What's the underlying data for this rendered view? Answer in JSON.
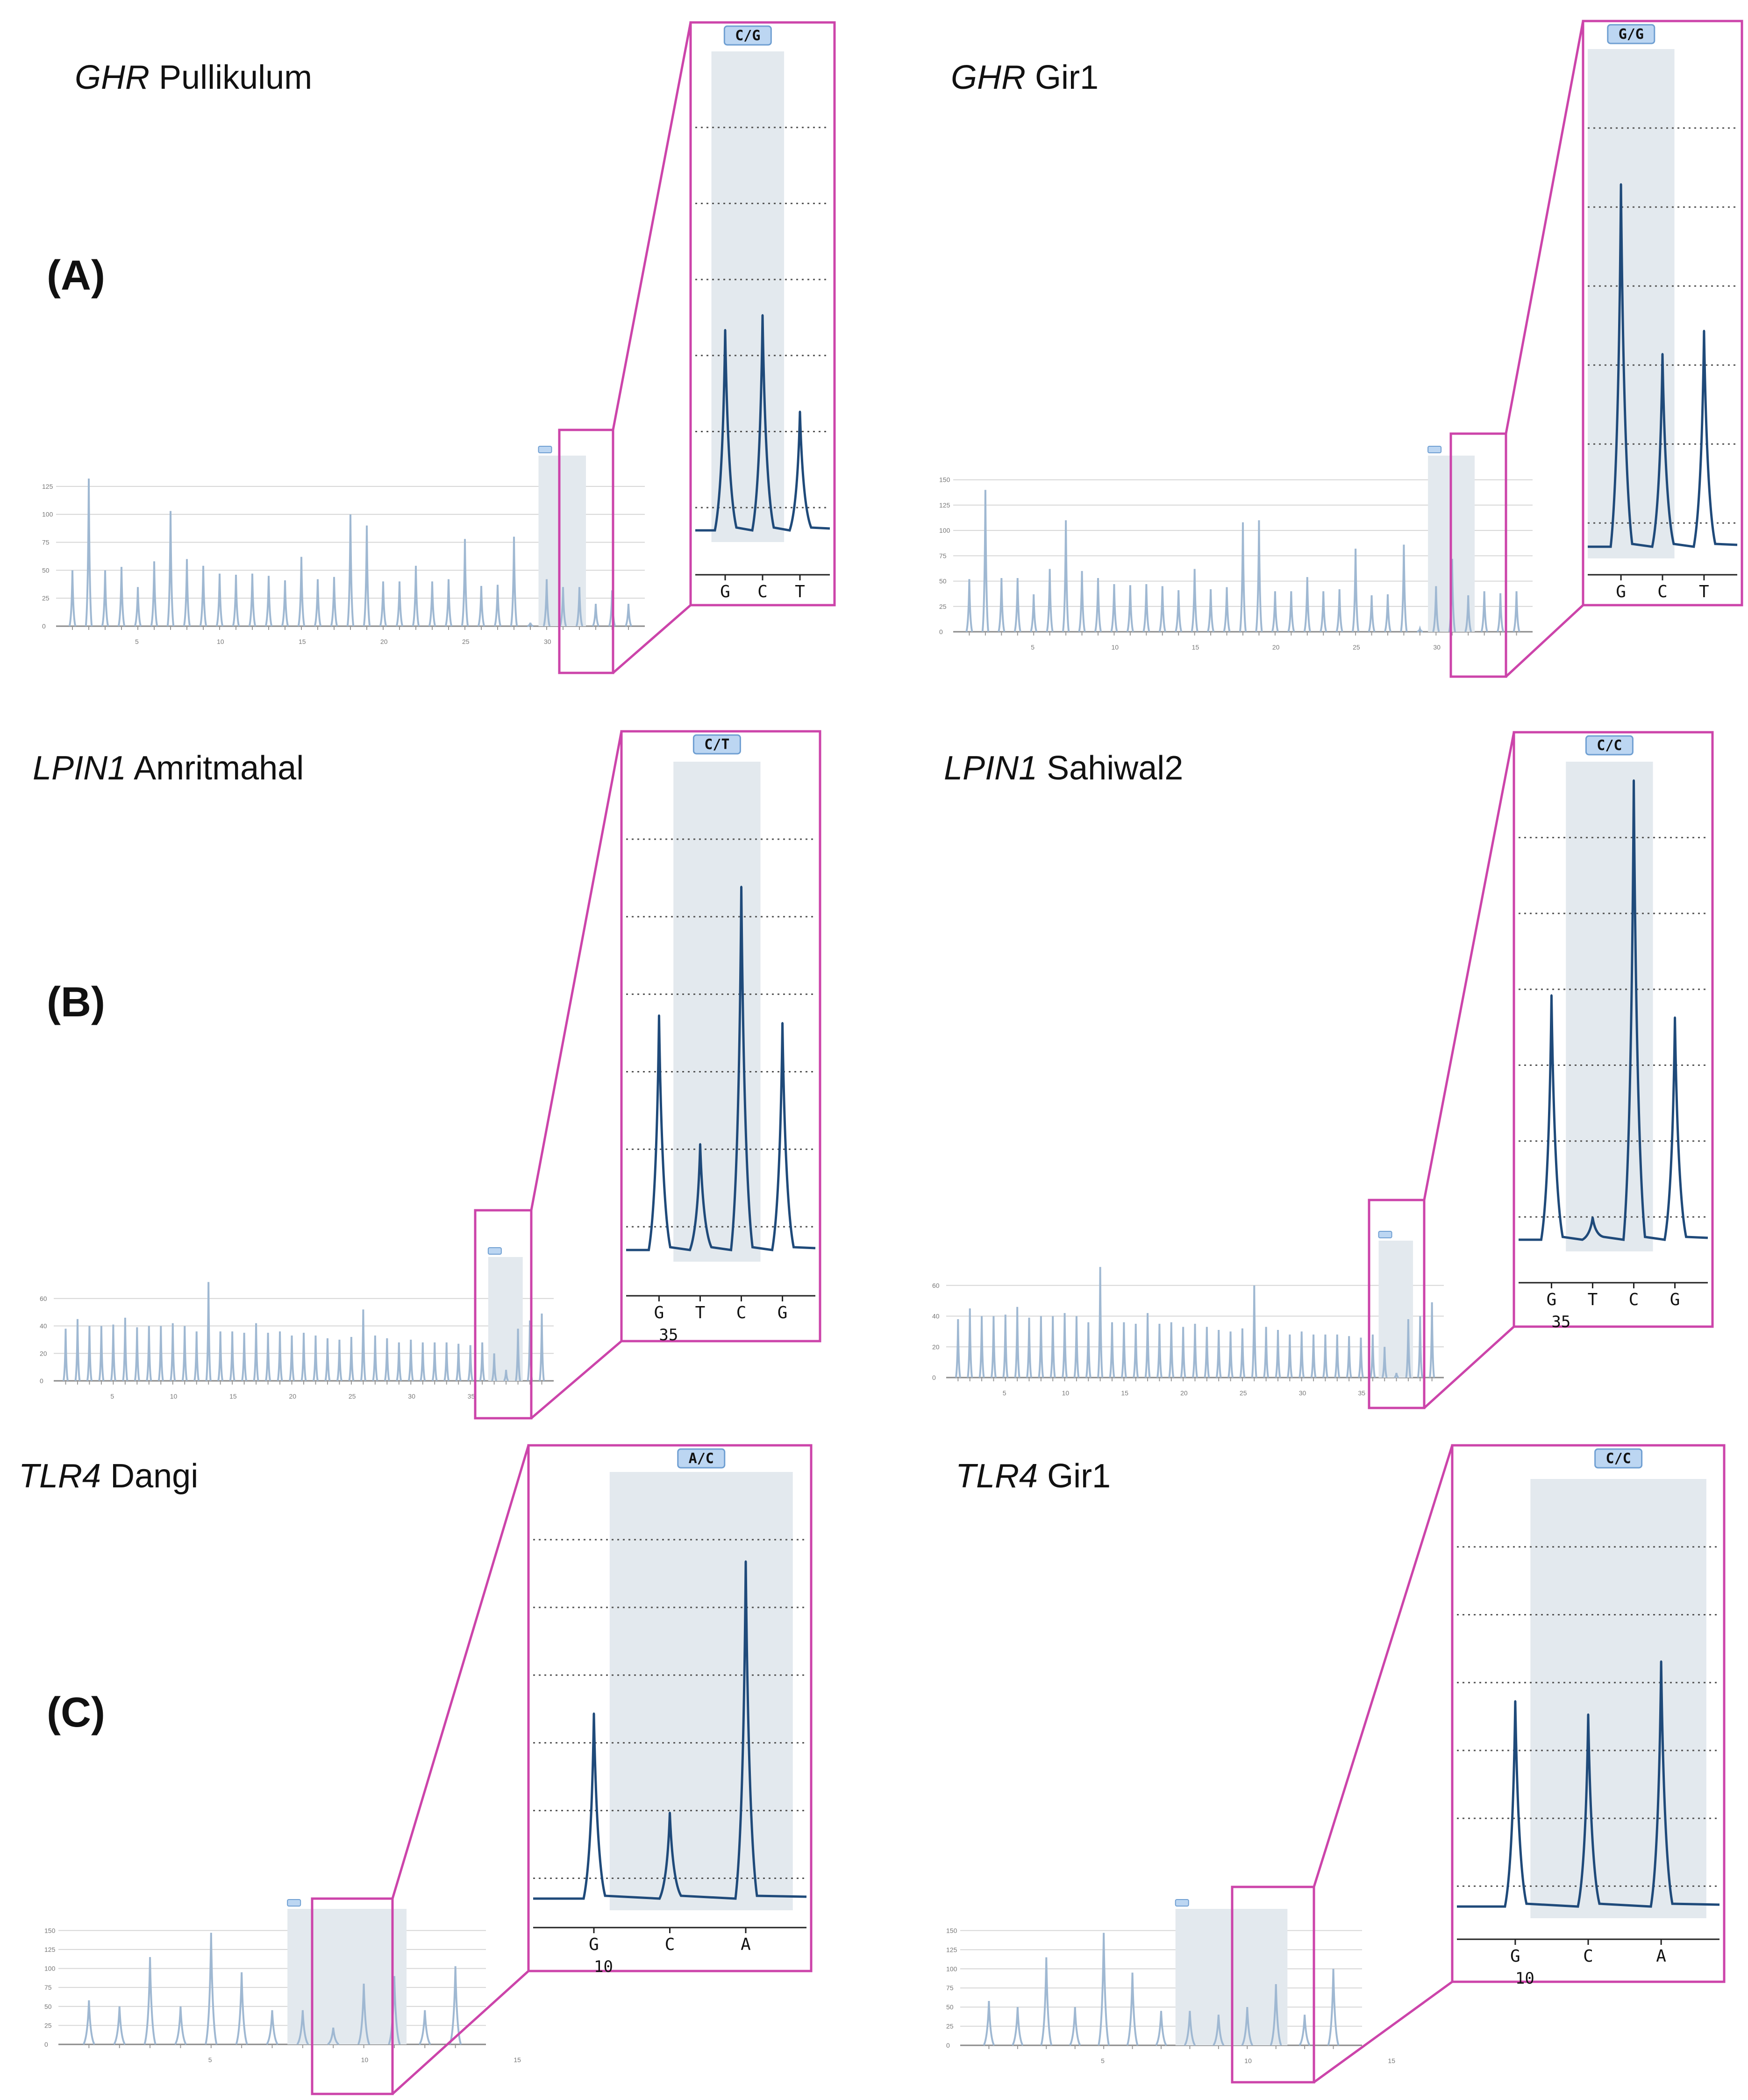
{
  "figure": {
    "panel_labels": [
      "(A)",
      "(B)",
      "(C)"
    ],
    "colors": {
      "zoom_frame": "#cc44aa",
      "trace_dark": "#1f4a7a",
      "trace_light": "#9fb8d2",
      "highlight_band": "#e3e9ee",
      "badge_fill": "#bcd6f2",
      "badge_stroke": "#6f9fd2",
      "gridline": "#d6d6d6",
      "dotted_line": "#555555"
    }
  },
  "chart_data": [
    {
      "type": "line",
      "panel": "A",
      "side": "left",
      "title_gene": "GHR",
      "title_breed": "Pullikulum",
      "genotype": "C/G",
      "overview": {
        "ylim": [
          0,
          140
        ],
        "y_ticks": [
          "0",
          "25",
          "50",
          "75",
          "100",
          "125"
        ],
        "x_ticks": [
          "5",
          "10",
          "15",
          "20",
          "25",
          "30"
        ],
        "peaks": [
          50,
          132,
          50,
          53,
          35,
          58,
          103,
          60,
          54,
          47,
          46,
          47,
          45,
          41,
          62,
          42,
          44,
          100,
          90,
          40,
          40,
          54,
          40,
          42,
          78,
          36,
          37,
          80,
          3,
          42,
          35,
          35,
          20,
          32,
          20
        ],
        "highlight": [
          29,
          31
        ]
      },
      "zoom": {
        "bases": [
          "G",
          "C",
          "T"
        ],
        "peak_heights": [
          0.27,
          0.29,
          0.16
        ],
        "band": [
          0.12,
          0.66
        ],
        "highlight_bases": [
          "C"
        ]
      }
    },
    {
      "type": "line",
      "panel": "A",
      "side": "right",
      "title_gene": "GHR",
      "title_breed": "Gir1",
      "genotype": "G/G",
      "overview": {
        "ylim": [
          0,
          160
        ],
        "y_ticks": [
          "0",
          "25",
          "50",
          "75",
          "100",
          "125",
          "150"
        ],
        "x_ticks": [
          "5",
          "10",
          "15",
          "20",
          "25",
          "30"
        ],
        "peaks": [
          52,
          140,
          53,
          53,
          37,
          62,
          110,
          60,
          53,
          47,
          46,
          47,
          45,
          41,
          62,
          42,
          44,
          108,
          110,
          40,
          40,
          54,
          40,
          42,
          82,
          36,
          37,
          86,
          3,
          45,
          72,
          36,
          40,
          38,
          40
        ],
        "highlight": [
          29,
          31
        ]
      },
      "zoom": {
        "bases": [
          "G",
          "C",
          "T"
        ],
        "peak_heights": [
          0.47,
          0.25,
          0.28
        ],
        "band": [
          0,
          0.58
        ],
        "highlight_bases": []
      }
    },
    {
      "type": "line",
      "panel": "B",
      "side": "left",
      "title_gene": "LPIN1",
      "title_breed": "Amritmahal",
      "genotype": "C/T",
      "overview": {
        "ylim": [
          0,
          80
        ],
        "y_ticks": [
          "0",
          "20",
          "40",
          "60"
        ],
        "x_ticks": [
          "5",
          "10",
          "15",
          "20",
          "25",
          "30",
          "35"
        ],
        "peaks": [
          38,
          45,
          40,
          40,
          41,
          46,
          39,
          40,
          40,
          42,
          40,
          36,
          72,
          36,
          36,
          35,
          42,
          35,
          36,
          33,
          35,
          33,
          31,
          30,
          32,
          52,
          33,
          31,
          28,
          30,
          28,
          28,
          28,
          27,
          26,
          28,
          20,
          8,
          38,
          44,
          49
        ],
        "highlight": [
          36,
          38
        ]
      },
      "zoom": {
        "bases": [
          "G",
          "T",
          "C",
          "G"
        ],
        "peak_heights": [
          0.31,
          0.14,
          0.48,
          0.3
        ],
        "band": [
          0.25,
          0.71
        ],
        "tick_number": "35",
        "tick_number_base": "G"
      }
    },
    {
      "type": "line",
      "panel": "B",
      "side": "right",
      "title_gene": "LPIN1",
      "title_breed": "Sahiwal2",
      "genotype": "C/C",
      "overview": {
        "ylim": [
          0,
          80
        ],
        "y_ticks": [
          "0",
          "20",
          "40",
          "60"
        ],
        "x_ticks": [
          "5",
          "10",
          "15",
          "20",
          "25",
          "30",
          "35"
        ],
        "peaks": [
          38,
          45,
          40,
          40,
          41,
          46,
          39,
          40,
          40,
          42,
          40,
          36,
          72,
          36,
          36,
          35,
          42,
          35,
          36,
          33,
          35,
          33,
          31,
          30,
          32,
          60,
          33,
          31,
          28,
          30,
          28,
          28,
          28,
          27,
          26,
          28,
          20,
          3,
          38,
          40,
          49
        ],
        "highlight": [
          36,
          38
        ]
      },
      "zoom": {
        "bases": [
          "G",
          "T",
          "C",
          "G"
        ],
        "peak_heights": [
          0.33,
          0.03,
          0.62,
          0.3
        ],
        "band": [
          0.25,
          0.71
        ],
        "tick_number": "35",
        "tick_number_base": "G"
      }
    },
    {
      "type": "line",
      "panel": "C",
      "side": "left",
      "title_gene": "TLR4",
      "title_breed": "Dangi",
      "genotype": "A/C",
      "overview": {
        "ylim": [
          0,
          160
        ],
        "y_ticks": [
          "0",
          "25",
          "50",
          "75",
          "100",
          "125",
          "150"
        ],
        "x_ticks": [
          "5",
          "10",
          "15"
        ],
        "peaks": [
          58,
          50,
          115,
          50,
          147,
          95,
          45,
          45,
          22,
          80,
          90,
          45,
          103
        ],
        "highlight": [
          7,
          10
        ]
      },
      "zoom": {
        "bases": [
          "G",
          "C",
          "A"
        ],
        "peak_heights": [
          0.28,
          0.13,
          0.51
        ],
        "band": [
          0.28,
          0.95
        ],
        "tick_number": "10",
        "tick_number_base": "G"
      }
    },
    {
      "type": "line",
      "panel": "C",
      "side": "right",
      "title_gene": "TLR4",
      "title_breed": "Gir1",
      "genotype": "C/C",
      "overview": {
        "ylim": [
          0,
          160
        ],
        "y_ticks": [
          "0",
          "25",
          "50",
          "75",
          "100",
          "125",
          "150"
        ],
        "x_ticks": [
          "5",
          "10",
          "15"
        ],
        "peaks": [
          58,
          50,
          115,
          50,
          147,
          95,
          45,
          45,
          40,
          50,
          80,
          40,
          100
        ],
        "highlight": [
          7,
          10
        ]
      },
      "zoom": {
        "bases": [
          "G",
          "C",
          "A"
        ],
        "peak_heights": [
          0.31,
          0.29,
          0.37
        ],
        "band": [
          0.28,
          0.95
        ],
        "tick_number": "10",
        "tick_number_base": "G"
      }
    }
  ]
}
